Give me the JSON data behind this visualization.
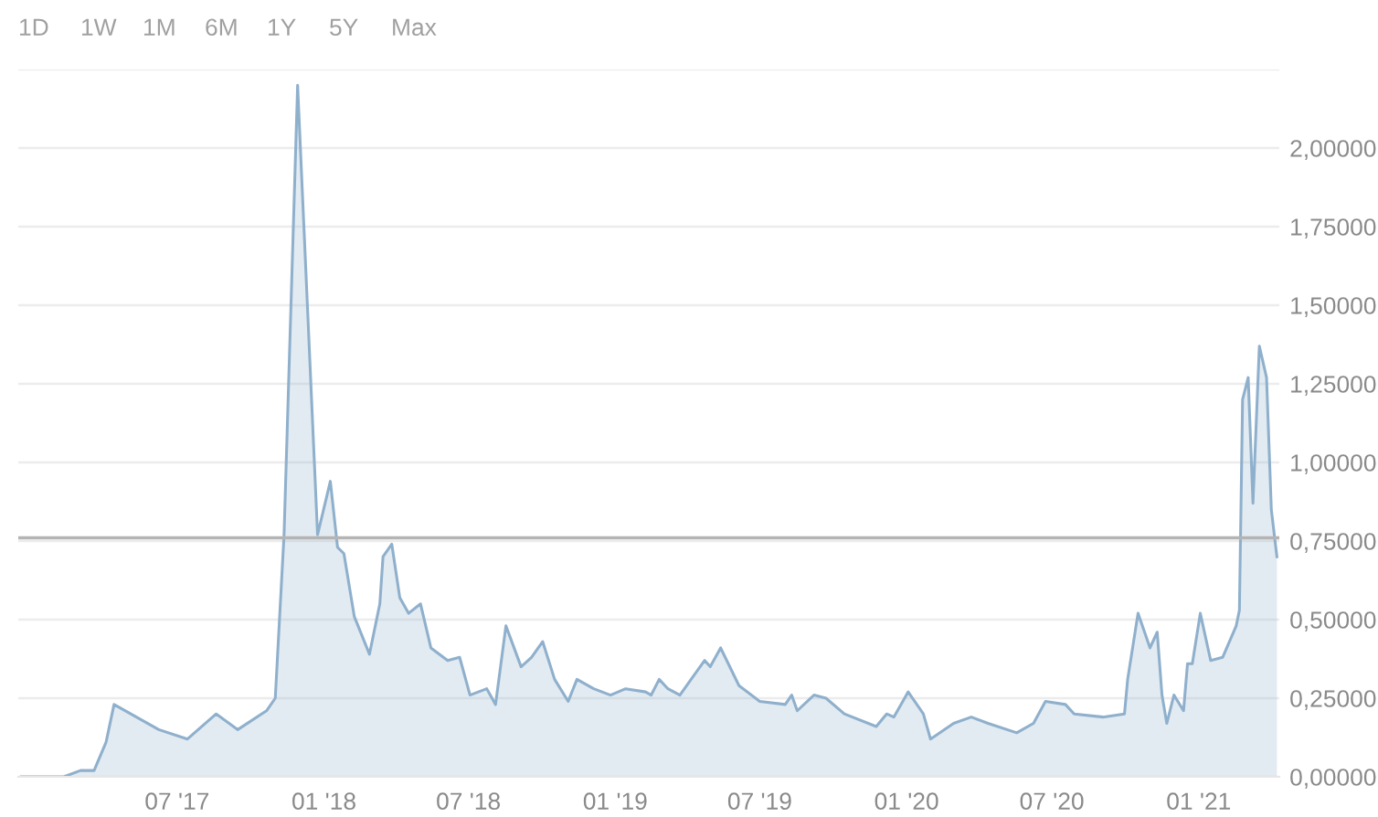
{
  "chart_data": {
    "type": "area",
    "annotations": [
      "1D",
      "1W",
      "1M",
      "6M",
      "1Y",
      "5Y",
      "Max"
    ],
    "x": [
      "2016-12-18",
      "2017-02-09",
      "2017-03-02",
      "2017-03-19",
      "2017-04-03",
      "2017-04-13",
      "2017-06-08",
      "2017-07-14",
      "2017-08-19",
      "2017-09-15",
      "2017-10-21",
      "2017-11-01",
      "2017-11-12",
      "2017-11-29",
      "2017-12-24",
      "2018-01-09",
      "2018-01-18",
      "2018-01-26",
      "2018-02-08",
      "2018-02-27",
      "2018-03-12",
      "2018-03-16",
      "2018-03-27",
      "2018-04-06",
      "2018-04-17",
      "2018-05-02",
      "2018-05-15",
      "2018-06-05",
      "2018-06-20",
      "2018-07-03",
      "2018-07-24",
      "2018-08-04",
      "2018-08-17",
      "2018-09-05",
      "2018-09-18",
      "2018-10-02",
      "2018-10-17",
      "2018-11-03",
      "2018-11-14",
      "2018-12-05",
      "2018-12-26",
      "2019-01-14",
      "2019-02-08",
      "2019-02-15",
      "2019-02-25",
      "2019-03-08",
      "2019-03-23",
      "2019-04-06",
      "2019-04-23",
      "2019-04-30",
      "2019-05-13",
      "2019-06-05",
      "2019-07-01",
      "2019-08-02",
      "2019-08-10",
      "2019-08-17",
      "2019-09-07",
      "2019-09-22",
      "2019-10-15",
      "2019-11-24",
      "2019-12-07",
      "2019-12-16",
      "2020-01-03",
      "2020-01-22",
      "2020-01-31",
      "2020-02-29",
      "2020-03-22",
      "2020-04-12",
      "2020-05-18",
      "2020-06-08",
      "2020-06-23",
      "2020-07-18",
      "2020-07-29",
      "2020-09-03",
      "2020-09-30",
      "2020-10-04",
      "2020-10-17",
      "2020-11-01",
      "2020-11-10",
      "2020-11-16",
      "2020-11-22",
      "2020-12-01",
      "2020-12-13",
      "2020-12-18",
      "2020-12-24",
      "2021-01-03",
      "2021-01-16",
      "2021-01-31",
      "2021-02-17",
      "2021-02-21",
      "2021-02-25",
      "2021-03-04",
      "2021-03-10",
      "2021-03-18",
      "2021-03-27",
      "2021-04-02",
      "2021-04-09"
    ],
    "series": [
      {
        "color": "#8fb0cc",
        "values": [
          0,
          0,
          0.02,
          0.02,
          0.11,
          0.23,
          0.15,
          0.12,
          0.2,
          0.15,
          0.21,
          0.25,
          0.77,
          2.2,
          0.77,
          0.94,
          0.73,
          0.71,
          0.51,
          0.39,
          0.55,
          0.7,
          0.74,
          0.57,
          0.52,
          0.55,
          0.41,
          0.37,
          0.38,
          0.26,
          0.28,
          0.23,
          0.48,
          0.35,
          0.38,
          0.43,
          0.31,
          0.24,
          0.31,
          0.28,
          0.26,
          0.28,
          0.27,
          0.26,
          0.31,
          0.28,
          0.26,
          0.31,
          0.37,
          0.35,
          0.41,
          0.29,
          0.24,
          0.23,
          0.26,
          0.21,
          0.26,
          0.25,
          0.2,
          0.16,
          0.2,
          0.19,
          0.27,
          0.2,
          0.12,
          0.17,
          0.19,
          0.17,
          0.14,
          0.17,
          0.24,
          0.23,
          0.2,
          0.19,
          0.2,
          0.31,
          0.52,
          0.41,
          0.46,
          0.26,
          0.17,
          0.26,
          0.21,
          0.36,
          0.36,
          0.52,
          0.37,
          0.38,
          0.48,
          0.53,
          1.2,
          1.27,
          0.87,
          1.37,
          1.27,
          0.85,
          0.7
        ]
      }
    ],
    "xlim": [
      "2016-12-14",
      "2021-04-12"
    ],
    "xticks": [
      {
        "value": "2017-07-01",
        "label": "07 '17"
      },
      {
        "value": "2018-01-01",
        "label": "01 '18"
      },
      {
        "value": "2018-07-01",
        "label": "07 '18"
      },
      {
        "value": "2019-01-01",
        "label": "01 '19"
      },
      {
        "value": "2019-07-01",
        "label": "07 '19"
      },
      {
        "value": "2020-01-01",
        "label": "01 '20"
      },
      {
        "value": "2020-07-01",
        "label": "07 '20"
      },
      {
        "value": "2021-01-01",
        "label": "01 '21"
      }
    ],
    "ylim": [
      0,
      2.25
    ],
    "yticks": [
      {
        "value": 0,
        "label": "0,00000"
      },
      {
        "value": 0.25,
        "label": "0,25000"
      },
      {
        "value": 0.5,
        "label": "0,50000"
      },
      {
        "value": 0.75,
        "label": "0,75000"
      },
      {
        "value": 1,
        "label": "1,00000"
      },
      {
        "value": 1.25,
        "label": "1,25000"
      },
      {
        "value": 1.5,
        "label": "1,50000"
      },
      {
        "value": 1.75,
        "label": "1,75000"
      },
      {
        "value": 2,
        "label": "2,00000"
      },
      {
        "value": 2.25,
        "label": null
      }
    ],
    "ref_lines": [
      {
        "axis": "y",
        "value": 0.76,
        "color": "#b4b4b4"
      }
    ],
    "grid": "y",
    "legend": false
  }
}
